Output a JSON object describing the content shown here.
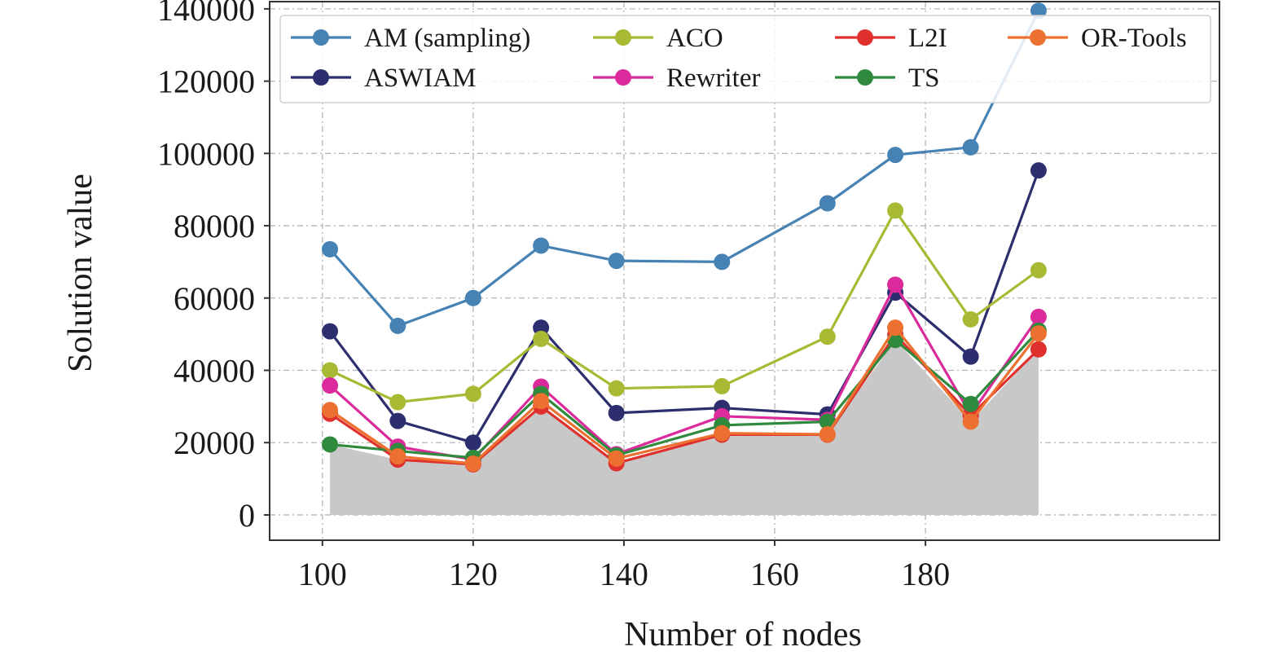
{
  "chart_data": {
    "type": "line",
    "xlabel": "Number of nodes",
    "ylabel": "Solution value",
    "xlim": [
      93,
      219
    ],
    "ylim": [
      -7000,
      142000
    ],
    "x_ticks": [
      100,
      120,
      140,
      160,
      180
    ],
    "y_ticks": [
      0,
      20000,
      40000,
      60000,
      80000,
      100000,
      120000,
      140000
    ],
    "grid": true,
    "legend_position": "top",
    "x": [
      101,
      110,
      120,
      129,
      139,
      153,
      167,
      176,
      186,
      195
    ],
    "series": [
      {
        "name": "AM (sampling)",
        "color": "#4682b4",
        "values": [
          73500,
          52300,
          60000,
          74500,
          70300,
          70000,
          86200,
          99600,
          101700,
          139500
        ]
      },
      {
        "name": "ASWIAM",
        "color": "#2c2e6e",
        "values": [
          50800,
          26000,
          20000,
          51800,
          28200,
          29600,
          27800,
          61500,
          43800,
          95300
        ]
      },
      {
        "name": "ACO",
        "color": "#a8b934",
        "values": [
          40000,
          31200,
          33500,
          48700,
          35000,
          35600,
          49300,
          84200,
          54100,
          67700
        ]
      },
      {
        "name": "Rewriter",
        "color": "#db2a9b",
        "values": [
          35800,
          18900,
          15300,
          35500,
          16800,
          27300,
          26300,
          63700,
          27700,
          54800
        ]
      },
      {
        "name": "L2I",
        "color": "#e0302d",
        "values": [
          28000,
          15300,
          14000,
          30000,
          14300,
          22200,
          22200,
          49900,
          27500,
          45800
        ]
      },
      {
        "name": "TS",
        "color": "#2f8a3e",
        "values": [
          19500,
          17700,
          15800,
          33500,
          16500,
          24800,
          25800,
          48400,
          30700,
          51000
        ]
      },
      {
        "name": "OR-Tools",
        "color": "#ec7030",
        "values": [
          29000,
          16200,
          14200,
          31500,
          15600,
          22600,
          22300,
          51800,
          25800,
          50200
        ]
      }
    ]
  }
}
